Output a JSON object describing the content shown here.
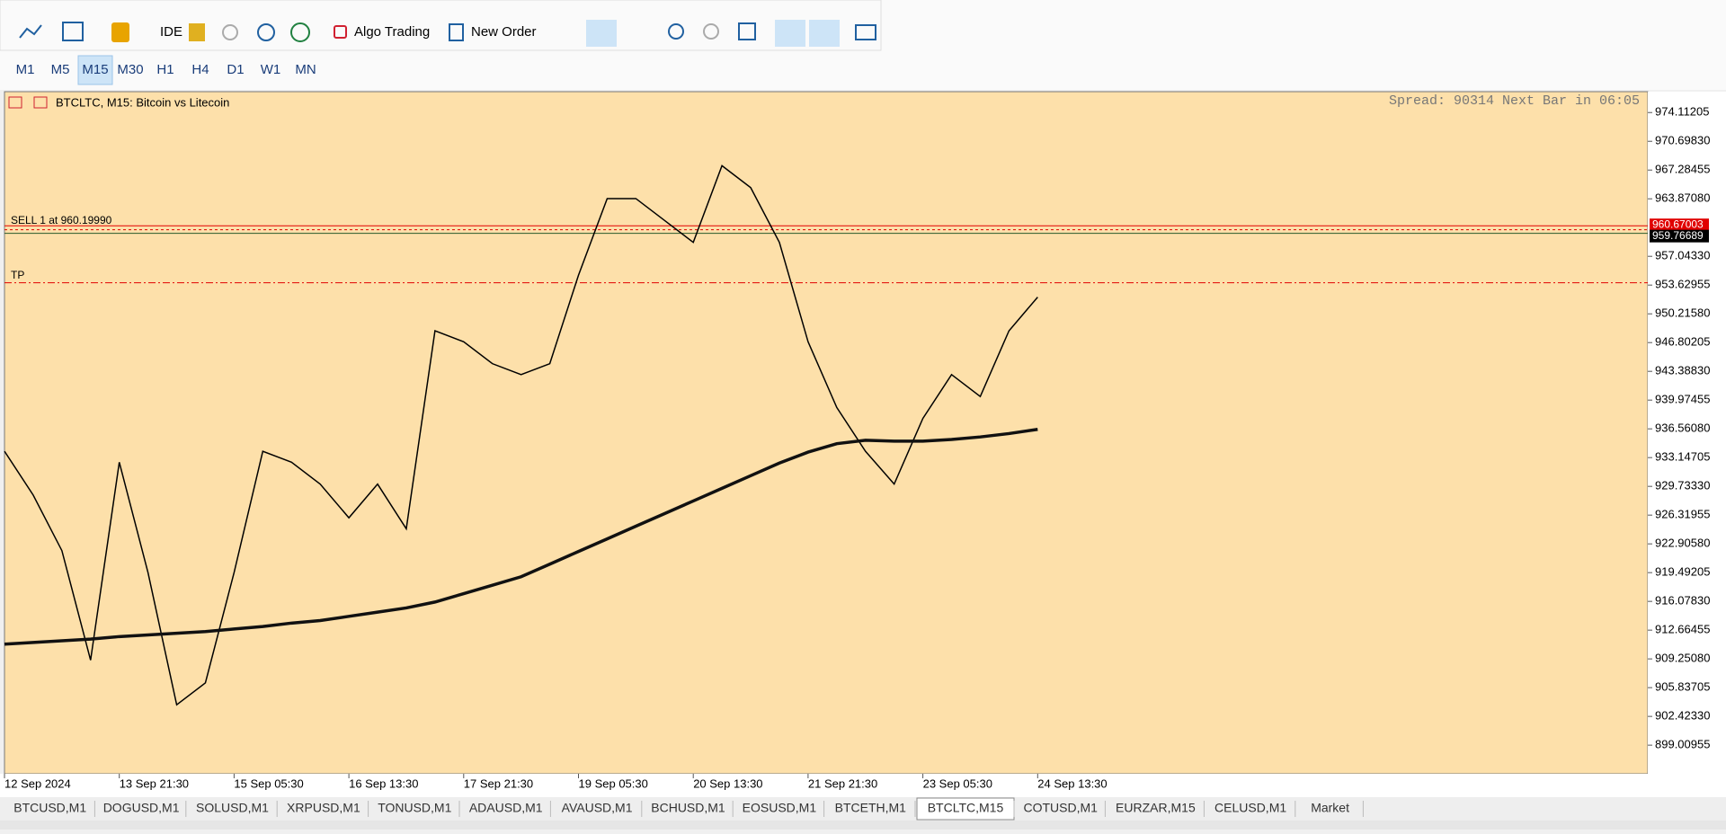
{
  "toolbar": {
    "buttons": [
      "IDE",
      "Algo Trading",
      "New Order"
    ]
  },
  "timeframes": {
    "items": [
      "M1",
      "M5",
      "M15",
      "M30",
      "H1",
      "H4",
      "D1",
      "W1",
      "MN"
    ],
    "active": "M15"
  },
  "chart_data": {
    "type": "line",
    "title": "BTCLTC, M15:  Bitcoin vs Litecoin",
    "info": "Spread: 90314 Next Bar in 06:05",
    "x_labels": [
      "12 Sep 2024",
      "13 Sep 21:30",
      "15 Sep 05:30",
      "16 Sep 13:30",
      "17 Sep 21:30",
      "19 Sep 05:30",
      "20 Sep 13:30",
      "21 Sep 21:30",
      "23 Sep 05:30",
      "24 Sep 13:30"
    ],
    "ylim": [
      895.61,
      976.59
    ],
    "yticks": [
      {
        "value": 974.11205,
        "label": "974.11205"
      },
      {
        "value": 970.6983,
        "label": "970.69830"
      },
      {
        "value": 967.28455,
        "label": "967.28455"
      },
      {
        "value": 963.8708,
        "label": "963.87080"
      },
      {
        "value": 957.0433,
        "label": "957.04330"
      },
      {
        "value": 953.62955,
        "label": "953.62955"
      },
      {
        "value": 950.2158,
        "label": "950.21580"
      },
      {
        "value": 946.80205,
        "label": "946.80205"
      },
      {
        "value": 943.3883,
        "label": "943.38830"
      },
      {
        "value": 939.97455,
        "label": "939.97455"
      },
      {
        "value": 936.5608,
        "label": "936.56080"
      },
      {
        "value": 933.14705,
        "label": "933.14705"
      },
      {
        "value": 929.7333,
        "label": "929.73330"
      },
      {
        "value": 926.31955,
        "label": "926.31955"
      },
      {
        "value": 922.9058,
        "label": "922.90580"
      },
      {
        "value": 919.49205,
        "label": "919.49205"
      },
      {
        "value": 916.0783,
        "label": "916.07830"
      },
      {
        "value": 912.66455,
        "label": "912.66455"
      },
      {
        "value": 909.2508,
        "label": "909.25080"
      },
      {
        "value": 905.83705,
        "label": "905.83705"
      },
      {
        "value": 902.4233,
        "label": "902.42330"
      },
      {
        "value": 899.00955,
        "label": "899.00955"
      }
    ],
    "price_levels": [
      {
        "value": 960.67003,
        "label": "960.67003",
        "color": "#e00000"
      },
      {
        "value": 959.76689,
        "label": "959.76689",
        "color": "#000000"
      }
    ],
    "order": {
      "label": "SELL 1 at 960.19990",
      "value": 960.1999
    },
    "tp": {
      "label": "TP",
      "value": 953.9
    },
    "series": [
      {
        "color": "#000000",
        "values": [
          933.9,
          928.7,
          922.1,
          909.1,
          932.6,
          919.5,
          903.8,
          906.4,
          919.5,
          933.9,
          932.6,
          930.0,
          926.0,
          930.0,
          924.7,
          948.2,
          946.9,
          944.3,
          943.0,
          944.3,
          954.8,
          963.9,
          963.9,
          961.3,
          958.7,
          967.8,
          965.2,
          958.7,
          946.9,
          939.1,
          933.9,
          930.0,
          937.8,
          943.0,
          940.4,
          948.2,
          952.2
        ]
      },
      {
        "color": "#111111",
        "values": [
          911.0,
          911.2,
          911.4,
          911.6,
          911.9,
          912.1,
          912.3,
          912.5,
          912.8,
          913.1,
          913.5,
          913.8,
          914.3,
          914.8,
          915.3,
          916.0,
          917.0,
          918.0,
          919.0,
          920.5,
          922.0,
          923.5,
          925.0,
          926.5,
          928.0,
          929.5,
          931.0,
          932.5,
          933.8,
          934.8,
          935.2,
          935.1,
          935.1,
          935.3,
          935.6,
          936.0,
          936.5
        ]
      }
    ]
  },
  "tabs": {
    "items": [
      "BTCUSD,M1",
      "DOGUSD,M1",
      "SOLUSD,M1",
      "XRPUSD,M1",
      "TONUSD,M1",
      "ADAUSD,M1",
      "AVAUSD,M1",
      "BCHUSD,M1",
      "EOSUSD,M1",
      "BTCETH,M1",
      "BTCLTC,M15",
      "COTUSD,M1",
      "EURZAR,M15",
      "CELUSD,M1",
      "Market"
    ],
    "active": "BTCLTC,M15"
  }
}
